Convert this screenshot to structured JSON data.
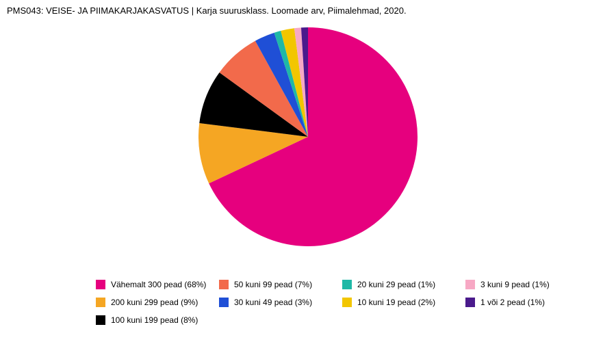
{
  "chart": {
    "type": "pie",
    "title": "PMS043: VEISE- JA PIIMAKARJAKASVATUS | Karja suurusklass. Loomade arv, Piimalehmad, 2020.",
    "title_fontsize": 13,
    "background_color": "#ffffff",
    "pie_diameter": 320,
    "start_angle": -90,
    "slices": [
      {
        "label": "Vähemalt 300 pead",
        "percent": 68,
        "color": "#e6007e"
      },
      {
        "label": "200 kuni 299 pead",
        "percent": 9,
        "color": "#f5a623"
      },
      {
        "label": "100 kuni 199 pead",
        "percent": 8,
        "color": "#000000"
      },
      {
        "label": "50 kuni 99 pead",
        "percent": 7,
        "color": "#f26a4b"
      },
      {
        "label": "30 kuni 49 pead",
        "percent": 3,
        "color": "#1f4fd6"
      },
      {
        "label": "20 kuni 29 pead",
        "percent": 1,
        "color": "#1fb8a6"
      },
      {
        "label": "10 kuni 19 pead",
        "percent": 2,
        "color": "#f2c600"
      },
      {
        "label": "3 kuni 9 pead",
        "percent": 1,
        "color": "#f7a8c4"
      },
      {
        "label": "1 või 2 pead",
        "percent": 1,
        "color": "#4a1a8c"
      }
    ],
    "legend": {
      "columns": 4,
      "rows": 3,
      "order": [
        0,
        3,
        5,
        7,
        1,
        4,
        6,
        8,
        2
      ],
      "fontsize": 12,
      "swatch_size": 14
    }
  }
}
